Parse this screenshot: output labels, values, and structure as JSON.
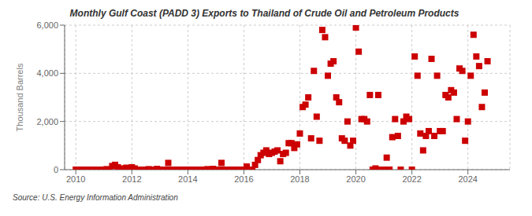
{
  "chart_data": {
    "type": "scatter",
    "title": "Monthly Gulf Coast (PADD 3) Exports to Thailand of Crude Oil and Petroleum Products",
    "y_label": "Thousand Barrels",
    "annotations": [
      "Source: U.S. Energy Information Administration"
    ],
    "color": "#cc0000",
    "marker": "square",
    "grid": true,
    "xlim": [
      2009.6,
      2025.5
    ],
    "xticks": [
      2010,
      2012,
      2014,
      2016,
      2018,
      2020,
      2022,
      2024
    ],
    "ylim": [
      0,
      6000
    ],
    "yticks": [
      0,
      {
        "value": 2000,
        "label": "2,000"
      },
      {
        "value": 4000,
        "label": "4,000"
      },
      {
        "value": 6000,
        "label": "6,000"
      }
    ],
    "x": [
      2010.0,
      2010.1,
      2010.2,
      2010.3,
      2010.4,
      2010.5,
      2010.6,
      2010.7,
      2010.8,
      2010.9,
      2011.0,
      2011.1,
      2011.2,
      2011.3,
      2011.4,
      2011.5,
      2011.6,
      2011.7,
      2011.8,
      2011.9,
      2012.0,
      2012.1,
      2012.2,
      2012.3,
      2012.4,
      2012.5,
      2012.6,
      2012.7,
      2012.8,
      2012.9,
      2013.0,
      2013.1,
      2013.2,
      2013.3,
      2013.4,
      2013.5,
      2013.6,
      2013.7,
      2013.8,
      2013.9,
      2014.0,
      2014.1,
      2014.2,
      2014.3,
      2014.4,
      2014.5,
      2014.6,
      2014.7,
      2014.8,
      2014.9,
      2015.0,
      2015.1,
      2015.2,
      2015.3,
      2015.4,
      2015.5,
      2015.6,
      2015.7,
      2015.8,
      2015.9,
      2016.0,
      2016.1,
      2016.2,
      2016.3,
      2016.4,
      2016.5,
      2016.6,
      2016.7,
      2016.8,
      2016.9,
      2017.0,
      2017.1,
      2017.2,
      2017.3,
      2017.4,
      2017.5,
      2017.6,
      2017.7,
      2017.8,
      2017.9,
      2018.0,
      2018.1,
      2018.2,
      2018.3,
      2018.4,
      2018.5,
      2018.6,
      2018.7,
      2018.8,
      2018.9,
      2019.0,
      2019.1,
      2019.2,
      2019.3,
      2019.4,
      2019.5,
      2019.6,
      2019.7,
      2019.8,
      2019.9,
      2020.0,
      2020.1,
      2020.2,
      2020.3,
      2020.4,
      2020.5,
      2020.6,
      2020.7,
      2020.8,
      2020.9,
      2021.0,
      2021.1,
      2021.2,
      2021.3,
      2021.4,
      2021.5,
      2021.6,
      2021.7,
      2021.8,
      2021.9,
      2022.0,
      2022.1,
      2022.2,
      2022.3,
      2022.4,
      2022.5,
      2022.6,
      2022.7,
      2022.8,
      2022.9,
      2023.0,
      2023.1,
      2023.2,
      2023.3,
      2023.4,
      2023.5,
      2023.6,
      2023.7,
      2023.8,
      2023.9,
      2024.0,
      2024.1,
      2024.2,
      2024.3,
      2024.4,
      2024.5,
      2024.6,
      2024.7
    ],
    "values": [
      0,
      0,
      0,
      0,
      0,
      0,
      0,
      0,
      0,
      0,
      0,
      20,
      0,
      150,
      200,
      100,
      50,
      0,
      80,
      0,
      100,
      50,
      0,
      0,
      0,
      0,
      20,
      0,
      0,
      30,
      0,
      0,
      0,
      280,
      0,
      0,
      0,
      0,
      0,
      0,
      0,
      0,
      0,
      0,
      0,
      0,
      0,
      20,
      0,
      30,
      0,
      0,
      280,
      0,
      0,
      0,
      0,
      0,
      0,
      0,
      0,
      130,
      0,
      0,
      200,
      400,
      600,
      700,
      800,
      650,
      700,
      750,
      800,
      350,
      650,
      700,
      1100,
      1100,
      900,
      1050,
      1500,
      2600,
      2700,
      3000,
      1300,
      4100,
      2200,
      1200,
      5800,
      5500,
      3900,
      4400,
      4500,
      3000,
      2800,
      1300,
      1200,
      2000,
      1000,
      1200,
      5900,
      4900,
      2100,
      2100,
      2000,
      3100,
      0,
      50,
      3100,
      0,
      0,
      500,
      0,
      1350,
      2100,
      1400,
      0,
      2000,
      2200,
      2100,
      0,
      4700,
      3900,
      1500,
      800,
      1400,
      1600,
      4600,
      1400,
      3900,
      1600,
      1600,
      3100,
      3000,
      3300,
      3200,
      2100,
      4200,
      4100,
      1200,
      2000,
      3900,
      5600,
      4700,
      4300,
      2600,
      3200,
      4500
    ]
  }
}
